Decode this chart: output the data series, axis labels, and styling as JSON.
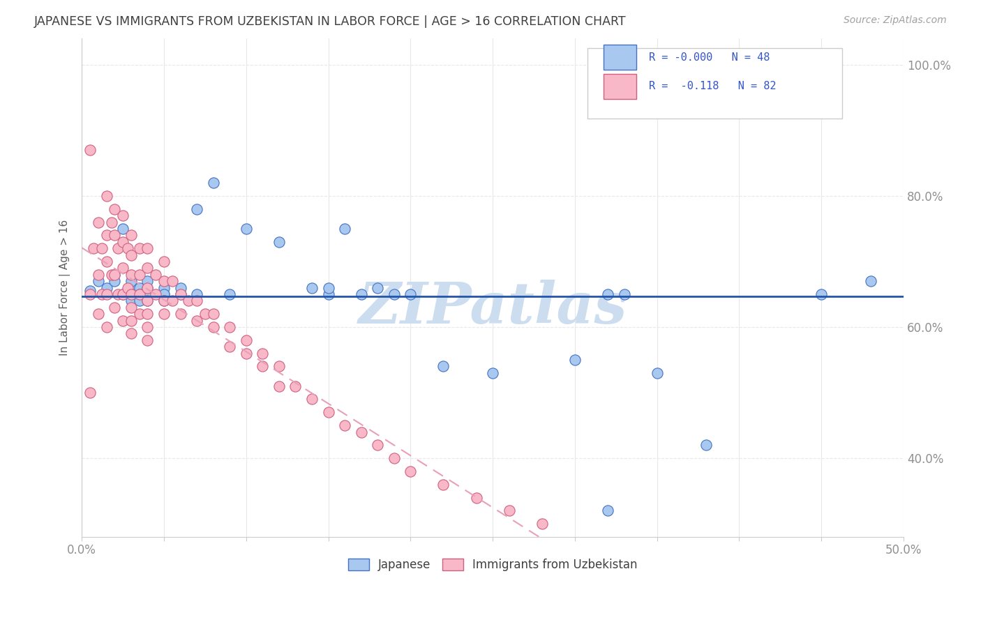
{
  "title": "JAPANESE VS IMMIGRANTS FROM UZBEKISTAN IN LABOR FORCE | AGE > 16 CORRELATION CHART",
  "source_text": "Source: ZipAtlas.com",
  "ylabel": "In Labor Force | Age > 16",
  "xlim": [
    0.0,
    0.5
  ],
  "ylim": [
    0.28,
    1.04
  ],
  "yticks": [
    0.4,
    0.6,
    0.8,
    1.0
  ],
  "ytick_labels": [
    "40.0%",
    "60.0%",
    "80.0%",
    "100.0%"
  ],
  "blue_color": "#a8c8f0",
  "blue_edge_color": "#4472c4",
  "pink_color": "#f8b8c8",
  "pink_edge_color": "#d06080",
  "trend_blue_color": "#2255aa",
  "trend_pink_color": "#e8a0b8",
  "watermark_color": "#ccddf0",
  "background_color": "#ffffff",
  "grid_color": "#e8e8e8",
  "title_color": "#404040",
  "tick_color": "#909090",
  "legend_color": "#3355cc",
  "japanese_x": [
    0.005,
    0.01,
    0.015,
    0.02,
    0.02,
    0.025,
    0.025,
    0.03,
    0.03,
    0.03,
    0.03,
    0.035,
    0.035,
    0.035,
    0.04,
    0.04,
    0.04,
    0.04,
    0.04,
    0.05,
    0.05,
    0.05,
    0.05,
    0.06,
    0.06,
    0.07,
    0.07,
    0.08,
    0.09,
    0.1,
    0.12,
    0.14,
    0.15,
    0.15,
    0.16,
    0.17,
    0.18,
    0.19,
    0.2,
    0.22,
    0.25,
    0.3,
    0.32,
    0.33,
    0.35,
    0.38,
    0.45,
    0.48
  ],
  "japanese_y": [
    0.655,
    0.67,
    0.66,
    0.68,
    0.67,
    0.75,
    0.65,
    0.66,
    0.67,
    0.65,
    0.64,
    0.66,
    0.65,
    0.64,
    0.65,
    0.66,
    0.64,
    0.65,
    0.67,
    0.65,
    0.66,
    0.65,
    0.64,
    0.65,
    0.66,
    0.65,
    0.78,
    0.82,
    0.65,
    0.75,
    0.73,
    0.66,
    0.65,
    0.66,
    0.75,
    0.65,
    0.66,
    0.65,
    0.65,
    0.54,
    0.53,
    0.55,
    0.65,
    0.65,
    0.53,
    0.42,
    0.65,
    0.67
  ],
  "japanese_outlier_x": [
    0.32
  ],
  "japanese_outlier_y": [
    0.32
  ],
  "uzbek_x": [
    0.005,
    0.005,
    0.007,
    0.01,
    0.01,
    0.01,
    0.012,
    0.012,
    0.015,
    0.015,
    0.015,
    0.015,
    0.015,
    0.018,
    0.018,
    0.02,
    0.02,
    0.02,
    0.02,
    0.022,
    0.022,
    0.025,
    0.025,
    0.025,
    0.025,
    0.025,
    0.028,
    0.028,
    0.03,
    0.03,
    0.03,
    0.03,
    0.03,
    0.03,
    0.03,
    0.035,
    0.035,
    0.035,
    0.035,
    0.04,
    0.04,
    0.04,
    0.04,
    0.04,
    0.04,
    0.04,
    0.045,
    0.045,
    0.05,
    0.05,
    0.05,
    0.05,
    0.055,
    0.055,
    0.06,
    0.06,
    0.065,
    0.07,
    0.07,
    0.075,
    0.08,
    0.08,
    0.09,
    0.09,
    0.1,
    0.1,
    0.11,
    0.11,
    0.12,
    0.12,
    0.13,
    0.14,
    0.15,
    0.16,
    0.17,
    0.18,
    0.19,
    0.2,
    0.22,
    0.24,
    0.26,
    0.28
  ],
  "uzbek_y": [
    0.87,
    0.65,
    0.72,
    0.76,
    0.68,
    0.62,
    0.72,
    0.65,
    0.8,
    0.74,
    0.7,
    0.65,
    0.6,
    0.76,
    0.68,
    0.78,
    0.74,
    0.68,
    0.63,
    0.72,
    0.65,
    0.77,
    0.73,
    0.69,
    0.65,
    0.61,
    0.72,
    0.66,
    0.74,
    0.71,
    0.68,
    0.65,
    0.63,
    0.61,
    0.59,
    0.72,
    0.68,
    0.65,
    0.62,
    0.72,
    0.69,
    0.66,
    0.64,
    0.62,
    0.6,
    0.58,
    0.68,
    0.65,
    0.7,
    0.67,
    0.64,
    0.62,
    0.67,
    0.64,
    0.65,
    0.62,
    0.64,
    0.64,
    0.61,
    0.62,
    0.62,
    0.6,
    0.6,
    0.57,
    0.58,
    0.56,
    0.56,
    0.54,
    0.54,
    0.51,
    0.51,
    0.49,
    0.47,
    0.45,
    0.44,
    0.42,
    0.4,
    0.38,
    0.36,
    0.34,
    0.32,
    0.3
  ],
  "uzbek_extra_x": [
    0.005
  ],
  "uzbek_extra_y": [
    0.5
  ]
}
